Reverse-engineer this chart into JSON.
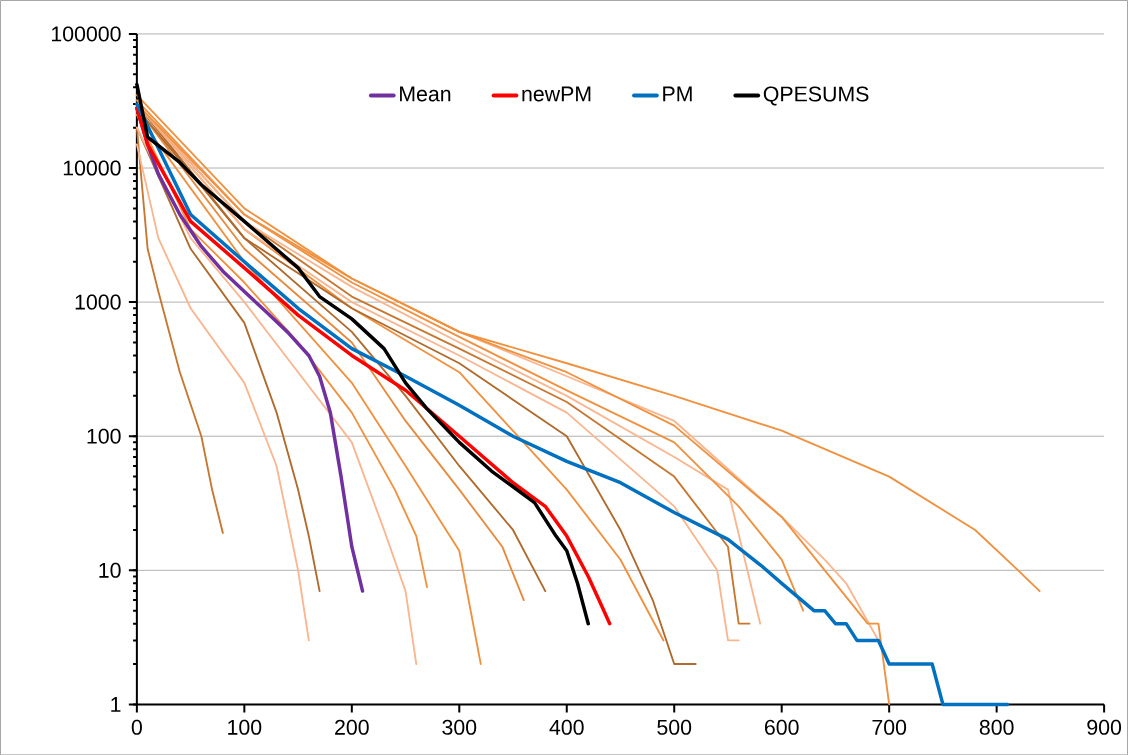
{
  "chart_data": {
    "type": "line",
    "log": "y",
    "grid": "y",
    "legend": "top",
    "marker": "none",
    "line_style": "solid",
    "xlim": [
      0,
      900
    ],
    "xticks": [
      0,
      100,
      200,
      300,
      400,
      500,
      600,
      700,
      800,
      900
    ],
    "ylim": [
      1,
      100000
    ],
    "yticks": [
      1,
      10,
      100,
      1000,
      10000,
      100000
    ],
    "series": [
      {
        "color": "#c7772f",
        "x": [
          0,
          10,
          20,
          40,
          60,
          70,
          80
        ],
        "values": [
          20000,
          2500,
          1200,
          300,
          100,
          40,
          19
        ]
      },
      {
        "color": "#f9b690",
        "x": [
          0,
          20,
          50,
          100,
          130,
          150,
          160
        ],
        "values": [
          15000,
          3000,
          900,
          250,
          60,
          10,
          3
        ]
      },
      {
        "color": "#b06a2c",
        "x": [
          0,
          50,
          100,
          130,
          150,
          160,
          170
        ],
        "values": [
          20000,
          2500,
          700,
          150,
          40,
          18,
          7
        ]
      },
      {
        "color": "#f9b690",
        "x": [
          0,
          50,
          100,
          150,
          200,
          230,
          250,
          260
        ],
        "values": [
          20000,
          3000,
          1000,
          300,
          90,
          20,
          7,
          2
        ]
      },
      {
        "color": "#f0913f",
        "x": [
          0,
          50,
          100,
          150,
          200,
          240,
          260,
          270
        ],
        "values": [
          25000,
          3500,
          1400,
          500,
          150,
          40,
          18,
          7.5
        ]
      },
      {
        "color": "#f0913f",
        "x": [
          0,
          100,
          200,
          250,
          280,
          300,
          320
        ],
        "values": [
          25000,
          2000,
          250,
          60,
          25,
          14,
          2
        ]
      },
      {
        "color": "#e88a3c",
        "x": [
          0,
          100,
          200,
          250,
          300,
          340,
          360
        ],
        "values": [
          28000,
          2500,
          500,
          130,
          40,
          15,
          6
        ]
      },
      {
        "color": "#b06a2c",
        "x": [
          0,
          100,
          200,
          250,
          300,
          350,
          380
        ],
        "values": [
          28000,
          3000,
          600,
          200,
          60,
          20,
          7
        ]
      },
      {
        "color": "#f0913f",
        "x": [
          0,
          100,
          200,
          300,
          400,
          450,
          490
        ],
        "values": [
          30000,
          3500,
          900,
          300,
          40,
          12,
          3
        ]
      },
      {
        "color": "#b06a2c",
        "x": [
          0,
          100,
          200,
          300,
          400,
          450,
          480,
          500,
          520
        ],
        "values": [
          30000,
          3000,
          900,
          350,
          100,
          20,
          6,
          2,
          2
        ]
      },
      {
        "color": "#f9b690",
        "x": [
          0,
          100,
          200,
          300,
          400,
          500,
          540,
          550,
          560
        ],
        "values": [
          30000,
          3500,
          1000,
          400,
          150,
          30,
          10,
          3,
          3
        ]
      },
      {
        "color": "#c7772f",
        "x": [
          0,
          100,
          200,
          300,
          400,
          500,
          550,
          560,
          570
        ],
        "values": [
          30000,
          4000,
          1100,
          450,
          180,
          50,
          15,
          4,
          4
        ]
      },
      {
        "color": "#f9b690",
        "x": [
          0,
          100,
          200,
          300,
          400,
          500,
          550,
          580
        ],
        "values": [
          30000,
          4000,
          1300,
          500,
          200,
          70,
          40,
          4
        ]
      },
      {
        "color": "#f0913f",
        "x": [
          0,
          100,
          200,
          300,
          400,
          500,
          560,
          600,
          620
        ],
        "values": [
          32000,
          4500,
          1400,
          550,
          220,
          90,
          30,
          12,
          5
        ]
      },
      {
        "color": "#f9b690",
        "x": [
          0,
          100,
          200,
          300,
          400,
          500,
          600,
          640,
          660,
          690
        ],
        "values": [
          30000,
          4500,
          1500,
          600,
          280,
          130,
          25,
          12,
          8,
          3
        ]
      },
      {
        "color": "#f0913f",
        "x": [
          0,
          100,
          200,
          300,
          400,
          500,
          600,
          640,
          680,
          690,
          700
        ],
        "values": [
          30000,
          4500,
          1500,
          600,
          300,
          120,
          25,
          10,
          4,
          4,
          1
        ]
      },
      {
        "color": "#f0913f",
        "x": [
          0,
          100,
          200,
          300,
          400,
          500,
          600,
          700,
          780,
          820,
          840
        ],
        "values": [
          35000,
          5000,
          1500,
          600,
          350,
          200,
          110,
          50,
          20,
          10,
          7
        ]
      },
      {
        "name": "Mean",
        "color": "#7030a0",
        "x": [
          0,
          10,
          20,
          40,
          60,
          80,
          100,
          120,
          140,
          160,
          170,
          180,
          190,
          200,
          210
        ],
        "values": [
          28000,
          15000,
          9000,
          4500,
          2600,
          1700,
          1200,
          850,
          600,
          400,
          280,
          150,
          50,
          15,
          7
        ]
      },
      {
        "name": "newPM",
        "color": "#ff0000",
        "x": [
          0,
          10,
          50,
          100,
          150,
          200,
          250,
          300,
          350,
          380,
          400,
          420,
          430,
          440
        ],
        "values": [
          28000,
          15000,
          4000,
          1800,
          800,
          400,
          220,
          100,
          45,
          30,
          18,
          9,
          6,
          4
        ]
      },
      {
        "name": "PM",
        "color": "#0070c0",
        "x": [
          0,
          50,
          100,
          150,
          200,
          250,
          300,
          350,
          400,
          450,
          500,
          550,
          580,
          600,
          630,
          640,
          650,
          660,
          670,
          690,
          700,
          740,
          750,
          810
        ],
        "values": [
          30000,
          4500,
          2000,
          900,
          450,
          280,
          170,
          100,
          65,
          45,
          27,
          17,
          11,
          8,
          5,
          5,
          4,
          4,
          3,
          3,
          2,
          2,
          1,
          1
        ]
      },
      {
        "name": "QPESUMS",
        "color": "#000000",
        "x": [
          0,
          10,
          40,
          60,
          100,
          150,
          170,
          200,
          230,
          250,
          270,
          300,
          330,
          350,
          370,
          390,
          400,
          410,
          420
        ],
        "values": [
          42000,
          17000,
          11000,
          7500,
          4000,
          1800,
          1100,
          750,
          450,
          250,
          160,
          90,
          55,
          42,
          32,
          18,
          14,
          8,
          4
        ]
      }
    ]
  }
}
